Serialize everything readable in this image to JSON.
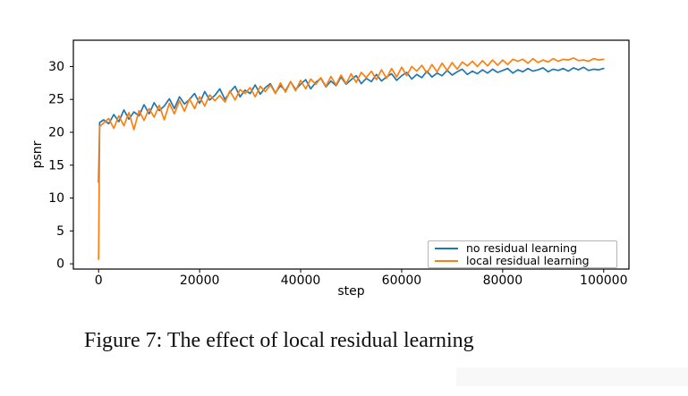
{
  "figure": {
    "caption": "Figure 7: The effect of local residual learning"
  },
  "colors": {
    "series_blue": "#1f77b4",
    "series_orange": "#ff7f0e",
    "spine": "#000000",
    "legend_border": "#b5b5b5",
    "corner_panel_bg": "#f8f8f8"
  },
  "chart_data": {
    "type": "line",
    "title": "",
    "xlabel": "step",
    "ylabel": "psnr",
    "xlim": [
      -5000,
      105000
    ],
    "ylim": [
      -0.8,
      34.0
    ],
    "x_ticks": [
      0,
      20000,
      40000,
      60000,
      80000,
      100000
    ],
    "x_tick_labels": [
      "0",
      "20000",
      "40000",
      "60000",
      "80000",
      "100000"
    ],
    "y_ticks": [
      0,
      5,
      10,
      15,
      20,
      25,
      30
    ],
    "y_tick_labels": [
      "0",
      "5",
      "10",
      "15",
      "20",
      "25",
      "30"
    ],
    "grid": false,
    "legend_position": "lower right",
    "series": [
      {
        "name": "no residual learning",
        "color": "#1f77b4",
        "points": [
          [
            0,
            12.4
          ],
          [
            200,
            21.5
          ],
          [
            1000,
            21.9
          ],
          [
            2000,
            21.3
          ],
          [
            3000,
            22.7
          ],
          [
            4000,
            21.6
          ],
          [
            5000,
            23.4
          ],
          [
            6000,
            22.0
          ],
          [
            7000,
            23.1
          ],
          [
            8000,
            22.5
          ],
          [
            9000,
            24.2
          ],
          [
            10000,
            22.8
          ],
          [
            11000,
            24.5
          ],
          [
            12000,
            23.3
          ],
          [
            13000,
            24.0
          ],
          [
            14000,
            25.1
          ],
          [
            15000,
            23.6
          ],
          [
            16000,
            25.4
          ],
          [
            17000,
            24.3
          ],
          [
            18000,
            25.0
          ],
          [
            19000,
            25.9
          ],
          [
            20000,
            24.4
          ],
          [
            21000,
            26.2
          ],
          [
            22000,
            24.9
          ],
          [
            23000,
            25.6
          ],
          [
            24000,
            26.6
          ],
          [
            25000,
            25.0
          ],
          [
            26000,
            26.1
          ],
          [
            27000,
            27.0
          ],
          [
            28000,
            25.4
          ],
          [
            29000,
            26.4
          ],
          [
            30000,
            25.9
          ],
          [
            31000,
            27.2
          ],
          [
            32000,
            25.8
          ],
          [
            33000,
            26.8
          ],
          [
            34000,
            27.4
          ],
          [
            35000,
            26.0
          ],
          [
            36000,
            27.1
          ],
          [
            37000,
            26.3
          ],
          [
            38000,
            27.7
          ],
          [
            39000,
            26.5
          ],
          [
            40000,
            27.3
          ],
          [
            41000,
            28.0
          ],
          [
            42000,
            26.6
          ],
          [
            43000,
            27.6
          ],
          [
            44000,
            28.2
          ],
          [
            45000,
            26.9
          ],
          [
            46000,
            27.8
          ],
          [
            47000,
            27.1
          ],
          [
            48000,
            28.4
          ],
          [
            49000,
            27.3
          ],
          [
            50000,
            28.0
          ],
          [
            51000,
            28.6
          ],
          [
            52000,
            27.4
          ],
          [
            53000,
            28.2
          ],
          [
            54000,
            27.7
          ],
          [
            55000,
            28.8
          ],
          [
            56000,
            27.8
          ],
          [
            57000,
            28.4
          ],
          [
            58000,
            28.9
          ],
          [
            59000,
            27.9
          ],
          [
            60000,
            28.6
          ],
          [
            61000,
            29.1
          ],
          [
            62000,
            28.1
          ],
          [
            63000,
            28.8
          ],
          [
            64000,
            28.3
          ],
          [
            65000,
            29.3
          ],
          [
            66000,
            28.4
          ],
          [
            67000,
            29.0
          ],
          [
            68000,
            28.6
          ],
          [
            69000,
            29.4
          ],
          [
            70000,
            28.7
          ],
          [
            71000,
            29.2
          ],
          [
            72000,
            29.6
          ],
          [
            73000,
            28.8
          ],
          [
            74000,
            29.3
          ],
          [
            75000,
            28.9
          ],
          [
            76000,
            29.5
          ],
          [
            77000,
            29.0
          ],
          [
            78000,
            29.6
          ],
          [
            79000,
            29.1
          ],
          [
            80000,
            29.4
          ],
          [
            81000,
            29.7
          ],
          [
            82000,
            29.0
          ],
          [
            83000,
            29.5
          ],
          [
            84000,
            29.2
          ],
          [
            85000,
            29.7
          ],
          [
            86000,
            29.3
          ],
          [
            87000,
            29.5
          ],
          [
            88000,
            29.8
          ],
          [
            89000,
            29.2
          ],
          [
            90000,
            29.6
          ],
          [
            91000,
            29.4
          ],
          [
            92000,
            29.7
          ],
          [
            93000,
            29.3
          ],
          [
            94000,
            29.8
          ],
          [
            95000,
            29.5
          ],
          [
            96000,
            29.9
          ],
          [
            97000,
            29.4
          ],
          [
            98000,
            29.6
          ],
          [
            99000,
            29.5
          ],
          [
            100000,
            29.7
          ]
        ]
      },
      {
        "name": "local residual learning",
        "color": "#ff7f0e",
        "points": [
          [
            0,
            0.7
          ],
          [
            200,
            20.9
          ],
          [
            1000,
            21.4
          ],
          [
            2000,
            22.1
          ],
          [
            3000,
            20.6
          ],
          [
            4000,
            22.5
          ],
          [
            5000,
            21.0
          ],
          [
            6000,
            23.0
          ],
          [
            7000,
            20.4
          ],
          [
            8000,
            23.3
          ],
          [
            9000,
            21.8
          ],
          [
            10000,
            23.6
          ],
          [
            11000,
            22.3
          ],
          [
            12000,
            24.1
          ],
          [
            13000,
            21.9
          ],
          [
            14000,
            24.4
          ],
          [
            15000,
            22.8
          ],
          [
            16000,
            24.8
          ],
          [
            17000,
            23.2
          ],
          [
            18000,
            25.1
          ],
          [
            19000,
            23.6
          ],
          [
            20000,
            25.4
          ],
          [
            21000,
            24.0
          ],
          [
            22000,
            25.7
          ],
          [
            23000,
            24.8
          ],
          [
            24000,
            25.6
          ],
          [
            25000,
            24.6
          ],
          [
            26000,
            26.3
          ],
          [
            27000,
            24.9
          ],
          [
            28000,
            26.5
          ],
          [
            29000,
            25.9
          ],
          [
            30000,
            26.8
          ],
          [
            31000,
            25.4
          ],
          [
            32000,
            27.0
          ],
          [
            33000,
            26.2
          ],
          [
            34000,
            27.2
          ],
          [
            35000,
            25.9
          ],
          [
            36000,
            27.5
          ],
          [
            37000,
            26.1
          ],
          [
            38000,
            27.7
          ],
          [
            39000,
            26.3
          ],
          [
            40000,
            27.9
          ],
          [
            41000,
            26.6
          ],
          [
            42000,
            28.1
          ],
          [
            43000,
            27.3
          ],
          [
            44000,
            28.3
          ],
          [
            45000,
            27.0
          ],
          [
            46000,
            28.5
          ],
          [
            47000,
            27.2
          ],
          [
            48000,
            28.7
          ],
          [
            49000,
            27.4
          ],
          [
            50000,
            28.9
          ],
          [
            51000,
            27.6
          ],
          [
            52000,
            29.1
          ],
          [
            53000,
            28.3
          ],
          [
            54000,
            29.3
          ],
          [
            55000,
            28.0
          ],
          [
            56000,
            29.5
          ],
          [
            57000,
            28.2
          ],
          [
            58000,
            29.7
          ],
          [
            59000,
            28.4
          ],
          [
            60000,
            29.9
          ],
          [
            61000,
            28.6
          ],
          [
            62000,
            30.0
          ],
          [
            63000,
            29.3
          ],
          [
            64000,
            30.2
          ],
          [
            65000,
            29.0
          ],
          [
            66000,
            30.3
          ],
          [
            67000,
            29.2
          ],
          [
            68000,
            30.5
          ],
          [
            69000,
            29.4
          ],
          [
            70000,
            30.6
          ],
          [
            71000,
            29.6
          ],
          [
            72000,
            30.7
          ],
          [
            73000,
            30.1
          ],
          [
            74000,
            30.8
          ],
          [
            75000,
            30.0
          ],
          [
            76000,
            30.9
          ],
          [
            77000,
            30.1
          ],
          [
            78000,
            31.0
          ],
          [
            79000,
            30.2
          ],
          [
            80000,
            31.0
          ],
          [
            81000,
            30.3
          ],
          [
            82000,
            31.1
          ],
          [
            83000,
            30.8
          ],
          [
            84000,
            31.1
          ],
          [
            85000,
            30.5
          ],
          [
            86000,
            31.2
          ],
          [
            87000,
            30.6
          ],
          [
            88000,
            31.0
          ],
          [
            89000,
            30.7
          ],
          [
            90000,
            31.2
          ],
          [
            91000,
            30.8
          ],
          [
            92000,
            31.1
          ],
          [
            93000,
            31.0
          ],
          [
            94000,
            31.3
          ],
          [
            95000,
            30.9
          ],
          [
            96000,
            31.0
          ],
          [
            97000,
            30.8
          ],
          [
            98000,
            31.2
          ],
          [
            99000,
            31.0
          ],
          [
            100000,
            31.1
          ]
        ]
      }
    ]
  }
}
